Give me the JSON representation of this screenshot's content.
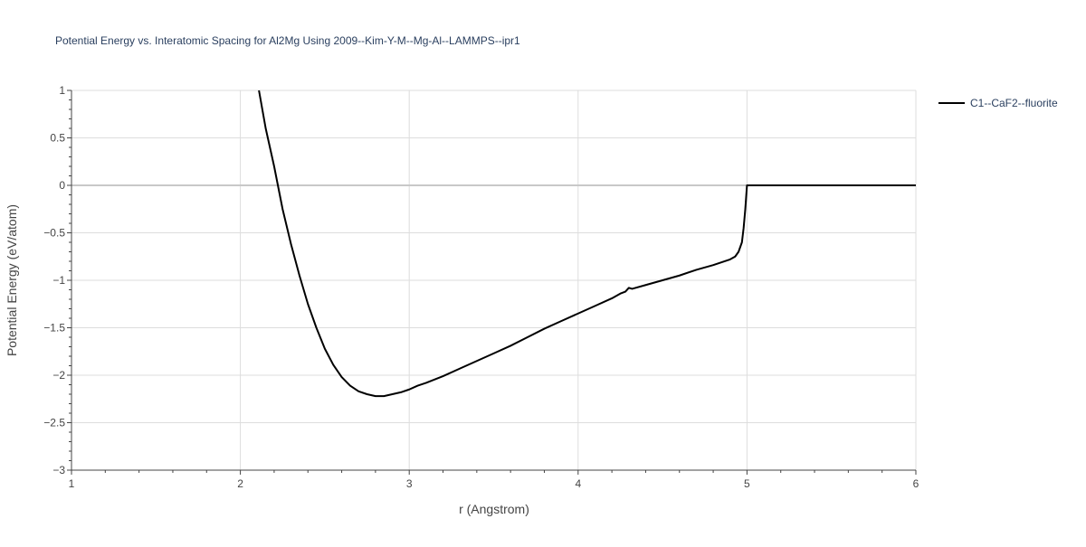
{
  "chart_data": {
    "type": "line",
    "title": "Potential Energy vs. Interatomic Spacing for Al2Mg Using 2009--Kim-Y-M--Mg-Al--LAMMPS--ipr1",
    "xlabel": "r (Angstrom)",
    "ylabel": "Potential Energy (eV/atom)",
    "xlim": [
      1,
      6
    ],
    "ylim": [
      -3,
      1
    ],
    "xticks": [
      1,
      2,
      3,
      4,
      5,
      6
    ],
    "xtick_labels": [
      "1",
      "2",
      "3",
      "4",
      "5",
      "6"
    ],
    "yticks": [
      -3,
      -2.5,
      -2,
      -1.5,
      -1,
      -0.5,
      0,
      0.5,
      1
    ],
    "ytick_labels": [
      "−3",
      "−2.5",
      "−2",
      "−1.5",
      "−1",
      "−0.5",
      "0",
      "0.5",
      "1"
    ],
    "grid": true,
    "legend_position": "top-right",
    "series": [
      {
        "name": "C1--CaF2--fluorite",
        "color": "#000000",
        "x": [
          2.11,
          2.15,
          2.2,
          2.25,
          2.3,
          2.35,
          2.4,
          2.45,
          2.5,
          2.55,
          2.6,
          2.65,
          2.7,
          2.75,
          2.8,
          2.85,
          2.9,
          2.95,
          3.0,
          3.05,
          3.1,
          3.2,
          3.3,
          3.4,
          3.5,
          3.6,
          3.7,
          3.8,
          3.9,
          4.0,
          4.1,
          4.2,
          4.25,
          4.28,
          4.3,
          4.32,
          4.4,
          4.5,
          4.6,
          4.7,
          4.8,
          4.85,
          4.9,
          4.93,
          4.95,
          4.97,
          4.98,
          4.99,
          5.0,
          5.2,
          5.5,
          6.0
        ],
        "y": [
          1.0,
          0.6,
          0.2,
          -0.25,
          -0.62,
          -0.95,
          -1.25,
          -1.5,
          -1.72,
          -1.89,
          -2.02,
          -2.11,
          -2.17,
          -2.2,
          -2.22,
          -2.22,
          -2.2,
          -2.18,
          -2.15,
          -2.11,
          -2.08,
          -2.01,
          -1.93,
          -1.85,
          -1.77,
          -1.69,
          -1.6,
          -1.51,
          -1.43,
          -1.35,
          -1.27,
          -1.19,
          -1.14,
          -1.12,
          -1.08,
          -1.09,
          -1.05,
          -1.0,
          -0.95,
          -0.89,
          -0.84,
          -0.81,
          -0.78,
          -0.75,
          -0.7,
          -0.6,
          -0.45,
          -0.25,
          0.0,
          0.0,
          0.0,
          0.0
        ]
      }
    ]
  }
}
